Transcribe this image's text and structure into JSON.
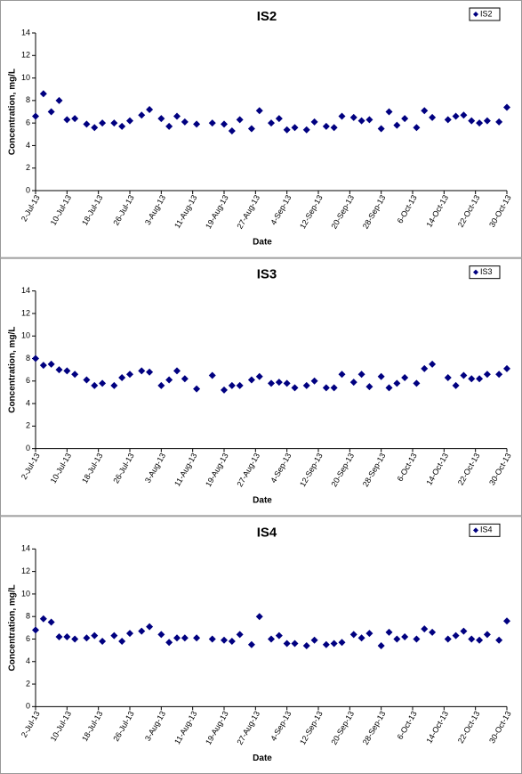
{
  "chart_data": [
    {
      "type": "scatter",
      "title": "IS2",
      "x_label": "Date",
      "y_label": "Concentration, mg/L",
      "x": [
        "2013-07-02",
        "2013-07-04",
        "2013-07-06",
        "2013-07-08",
        "2013-07-10",
        "2013-07-12",
        "2013-07-15",
        "2013-07-17",
        "2013-07-19",
        "2013-07-22",
        "2013-07-24",
        "2013-07-26",
        "2013-07-29",
        "2013-07-31",
        "2013-08-03",
        "2013-08-05",
        "2013-08-07",
        "2013-08-09",
        "2013-08-12",
        "2013-08-16",
        "2013-08-19",
        "2013-08-21",
        "2013-08-23",
        "2013-08-26",
        "2013-08-28",
        "2013-08-31",
        "2013-09-02",
        "2013-09-04",
        "2013-09-06",
        "2013-09-09",
        "2013-09-11",
        "2013-09-14",
        "2013-09-16",
        "2013-09-18",
        "2013-09-21",
        "2013-09-23",
        "2013-09-25",
        "2013-09-28",
        "2013-09-30",
        "2013-10-02",
        "2013-10-04",
        "2013-10-07",
        "2013-10-09",
        "2013-10-11",
        "2013-10-15",
        "2013-10-17",
        "2013-10-19",
        "2013-10-21",
        "2013-10-23",
        "2013-10-25",
        "2013-10-28",
        "2013-10-30"
      ],
      "series": [
        {
          "name": "IS2",
          "color": "#000080",
          "values": [
            6.6,
            8.6,
            7.0,
            8.0,
            6.3,
            6.4,
            5.9,
            5.6,
            6.0,
            6.0,
            5.7,
            6.2,
            6.7,
            7.2,
            6.4,
            5.7,
            6.6,
            6.1,
            5.9,
            6.0,
            5.9,
            5.3,
            6.3,
            5.5,
            7.1,
            6.0,
            6.4,
            5.4,
            5.6,
            5.4,
            6.1,
            5.7,
            5.6,
            6.6,
            6.5,
            6.2,
            6.3,
            5.5,
            7.0,
            5.8,
            6.4,
            5.6,
            7.1,
            6.5,
            6.3,
            6.6,
            6.7,
            6.2,
            6.0,
            6.2,
            6.1,
            7.4
          ]
        }
      ],
      "xlim": [
        "2013-07-02",
        "2013-10-30"
      ],
      "xticks": [
        {
          "value": "2013-07-02",
          "label": "2-Jul-13"
        },
        {
          "value": "2013-07-10",
          "label": "10-Jul-13"
        },
        {
          "value": "2013-07-18",
          "label": "18-Jul-13"
        },
        {
          "value": "2013-07-26",
          "label": "26-Jul-13"
        },
        {
          "value": "2013-08-03",
          "label": "3-Aug-13"
        },
        {
          "value": "2013-08-11",
          "label": "11-Aug-13"
        },
        {
          "value": "2013-08-19",
          "label": "19-Aug-13"
        },
        {
          "value": "2013-08-27",
          "label": "27-Aug-13"
        },
        {
          "value": "2013-09-04",
          "label": "4-Sep-13"
        },
        {
          "value": "2013-09-12",
          "label": "12-Sep-13"
        },
        {
          "value": "2013-09-20",
          "label": "20-Sep-13"
        },
        {
          "value": "2013-09-28",
          "label": "28-Sep-13"
        },
        {
          "value": "2013-10-06",
          "label": "6-Oct-13"
        },
        {
          "value": "2013-10-14",
          "label": "14-Oct-13"
        },
        {
          "value": "2013-10-22",
          "label": "22-Oct-13"
        },
        {
          "value": "2013-10-30",
          "label": "30-Oct-13"
        }
      ],
      "ylim": [
        0,
        14
      ],
      "yticks": [
        0,
        2,
        4,
        6,
        8,
        10,
        12,
        14
      ],
      "legend": "top-right"
    },
    {
      "type": "scatter",
      "title": "IS3",
      "x_label": "Date",
      "y_label": "Concentration, mg/L",
      "x": [
        "2013-07-02",
        "2013-07-04",
        "2013-07-06",
        "2013-07-08",
        "2013-07-10",
        "2013-07-12",
        "2013-07-15",
        "2013-07-17",
        "2013-07-19",
        "2013-07-22",
        "2013-07-24",
        "2013-07-26",
        "2013-07-29",
        "2013-07-31",
        "2013-08-03",
        "2013-08-05",
        "2013-08-07",
        "2013-08-09",
        "2013-08-12",
        "2013-08-16",
        "2013-08-19",
        "2013-08-21",
        "2013-08-23",
        "2013-08-26",
        "2013-08-28",
        "2013-08-31",
        "2013-09-02",
        "2013-09-04",
        "2013-09-06",
        "2013-09-09",
        "2013-09-11",
        "2013-09-14",
        "2013-09-16",
        "2013-09-18",
        "2013-09-21",
        "2013-09-23",
        "2013-09-25",
        "2013-09-28",
        "2013-09-30",
        "2013-10-02",
        "2013-10-04",
        "2013-10-07",
        "2013-10-09",
        "2013-10-11",
        "2013-10-15",
        "2013-10-17",
        "2013-10-19",
        "2013-10-21",
        "2013-10-23",
        "2013-10-25",
        "2013-10-28",
        "2013-10-30"
      ],
      "series": [
        {
          "name": "IS3",
          "color": "#000080",
          "values": [
            8.0,
            7.4,
            7.5,
            7.0,
            6.9,
            6.6,
            6.1,
            5.6,
            5.8,
            5.6,
            6.3,
            6.6,
            6.9,
            6.8,
            5.6,
            6.1,
            6.9,
            6.2,
            5.3,
            6.5,
            5.2,
            5.6,
            5.6,
            6.1,
            6.4,
            5.8,
            5.9,
            5.8,
            5.4,
            5.6,
            6.0,
            5.4,
            5.4,
            6.6,
            5.9,
            6.6,
            5.5,
            6.4,
            5.4,
            5.8,
            6.3,
            5.8,
            7.1,
            7.5,
            6.3,
            5.6,
            6.5,
            6.2,
            6.2,
            6.6,
            6.6,
            7.1
          ]
        }
      ],
      "xlim": [
        "2013-07-02",
        "2013-10-30"
      ],
      "xticks": [
        {
          "value": "2013-07-02",
          "label": "2-Jul-13"
        },
        {
          "value": "2013-07-10",
          "label": "10-Jul-13"
        },
        {
          "value": "2013-07-18",
          "label": "18-Jul-13"
        },
        {
          "value": "2013-07-26",
          "label": "26-Jul-13"
        },
        {
          "value": "2013-08-03",
          "label": "3-Aug-13"
        },
        {
          "value": "2013-08-11",
          "label": "11-Aug-13"
        },
        {
          "value": "2013-08-19",
          "label": "19-Aug-13"
        },
        {
          "value": "2013-08-27",
          "label": "27-Aug-13"
        },
        {
          "value": "2013-09-04",
          "label": "4-Sep-13"
        },
        {
          "value": "2013-09-12",
          "label": "12-Sep-13"
        },
        {
          "value": "2013-09-20",
          "label": "20-Sep-13"
        },
        {
          "value": "2013-09-28",
          "label": "28-Sep-13"
        },
        {
          "value": "2013-10-06",
          "label": "6-Oct-13"
        },
        {
          "value": "2013-10-14",
          "label": "14-Oct-13"
        },
        {
          "value": "2013-10-22",
          "label": "22-Oct-13"
        },
        {
          "value": "2013-10-30",
          "label": "30-Oct-13"
        }
      ],
      "ylim": [
        0,
        14
      ],
      "yticks": [
        0,
        2,
        4,
        6,
        8,
        10,
        12,
        14
      ],
      "legend": "top-right"
    },
    {
      "type": "scatter",
      "title": "IS4",
      "x_label": "Date",
      "y_label": "Concentration, mg/L",
      "x": [
        "2013-07-02",
        "2013-07-04",
        "2013-07-06",
        "2013-07-08",
        "2013-07-10",
        "2013-07-12",
        "2013-07-15",
        "2013-07-17",
        "2013-07-19",
        "2013-07-22",
        "2013-07-24",
        "2013-07-26",
        "2013-07-29",
        "2013-07-31",
        "2013-08-03",
        "2013-08-05",
        "2013-08-07",
        "2013-08-09",
        "2013-08-12",
        "2013-08-16",
        "2013-08-19",
        "2013-08-21",
        "2013-08-23",
        "2013-08-26",
        "2013-08-28",
        "2013-08-31",
        "2013-09-02",
        "2013-09-04",
        "2013-09-06",
        "2013-09-09",
        "2013-09-11",
        "2013-09-14",
        "2013-09-16",
        "2013-09-18",
        "2013-09-21",
        "2013-09-23",
        "2013-09-25",
        "2013-09-28",
        "2013-09-30",
        "2013-10-02",
        "2013-10-04",
        "2013-10-07",
        "2013-10-09",
        "2013-10-11",
        "2013-10-15",
        "2013-10-17",
        "2013-10-19",
        "2013-10-21",
        "2013-10-23",
        "2013-10-25",
        "2013-10-28",
        "2013-10-30"
      ],
      "series": [
        {
          "name": "IS4",
          "color": "#000080",
          "values": [
            6.8,
            7.8,
            7.5,
            6.2,
            6.2,
            6.0,
            6.1,
            6.3,
            5.8,
            6.3,
            5.8,
            6.5,
            6.7,
            7.1,
            6.4,
            5.7,
            6.1,
            6.1,
            6.1,
            6.0,
            5.9,
            5.8,
            6.4,
            5.5,
            8.0,
            6.0,
            6.3,
            5.6,
            5.6,
            5.4,
            5.9,
            5.5,
            5.6,
            5.7,
            6.4,
            6.1,
            6.5,
            5.4,
            6.6,
            6.0,
            6.2,
            6.0,
            6.9,
            6.6,
            6.0,
            6.3,
            6.7,
            6.0,
            5.9,
            6.4,
            5.9,
            7.6
          ]
        }
      ],
      "xlim": [
        "2013-07-02",
        "2013-10-30"
      ],
      "xticks": [
        {
          "value": "2013-07-02",
          "label": "2-Jul-13"
        },
        {
          "value": "2013-07-10",
          "label": "10-Jul-13"
        },
        {
          "value": "2013-07-18",
          "label": "18-Jul-13"
        },
        {
          "value": "2013-07-26",
          "label": "26-Jul-13"
        },
        {
          "value": "2013-08-03",
          "label": "3-Aug-13"
        },
        {
          "value": "2013-08-11",
          "label": "11-Aug-13"
        },
        {
          "value": "2013-08-19",
          "label": "19-Aug-13"
        },
        {
          "value": "2013-08-27",
          "label": "27-Aug-13"
        },
        {
          "value": "2013-09-04",
          "label": "4-Sep-13"
        },
        {
          "value": "2013-09-12",
          "label": "12-Sep-13"
        },
        {
          "value": "2013-09-20",
          "label": "20-Sep-13"
        },
        {
          "value": "2013-09-28",
          "label": "28-Sep-13"
        },
        {
          "value": "2013-10-06",
          "label": "6-Oct-13"
        },
        {
          "value": "2013-10-14",
          "label": "14-Oct-13"
        },
        {
          "value": "2013-10-22",
          "label": "22-Oct-13"
        },
        {
          "value": "2013-10-30",
          "label": "30-Oct-13"
        }
      ],
      "ylim": [
        0,
        14
      ],
      "yticks": [
        0,
        2,
        4,
        6,
        8,
        10,
        12,
        14
      ],
      "legend": "top-right"
    }
  ]
}
